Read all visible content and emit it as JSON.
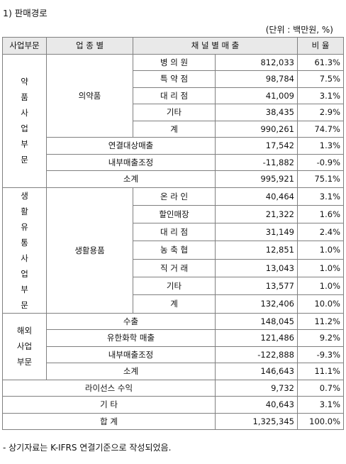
{
  "title": "1) 판매경로",
  "unit_note": "(단위 : 백만원, %)",
  "headers": {
    "segment": "사업부문",
    "type": "업    종    별",
    "channel": "채    널    별    매    출",
    "ratio": "비    율"
  },
  "pharma": {
    "segment_chars": [
      "약",
      "품",
      "사",
      "업",
      "부",
      "문"
    ],
    "product": "의약품",
    "rows": [
      {
        "channel": "병 의 원",
        "amount": "812,033",
        "ratio": "61.3%"
      },
      {
        "channel": "특 약 점",
        "amount": "98,784",
        "ratio": "7.5%"
      },
      {
        "channel": "대 리 점",
        "amount": "41,009",
        "ratio": "3.1%"
      },
      {
        "channel": "기타",
        "amount": "38,435",
        "ratio": "2.9%"
      },
      {
        "channel": "계",
        "amount": "990,261",
        "ratio": "74.7%"
      }
    ],
    "extra": [
      {
        "label": "연결대상매출",
        "amount": "17,542",
        "ratio": "1.3%"
      },
      {
        "label": "내부매출조정",
        "amount": "-11,882",
        "ratio": "-0.9%"
      },
      {
        "label": "소계",
        "amount": "995,921",
        "ratio": "75.1%"
      }
    ]
  },
  "living": {
    "segment_chars": [
      "생",
      "활",
      "유",
      "통",
      "사",
      "업",
      "부",
      "문"
    ],
    "product": "생활용품",
    "rows": [
      {
        "channel": "온 라 인",
        "amount": "40,464",
        "ratio": "3.1%"
      },
      {
        "channel": "할인매장",
        "amount": "21,322",
        "ratio": "1.6%"
      },
      {
        "channel": "대 리 점",
        "amount": "31,149",
        "ratio": "2.4%"
      },
      {
        "channel": "농 축 협",
        "amount": "12,851",
        "ratio": "1.0%"
      },
      {
        "channel": "직 거 래",
        "amount": "13,043",
        "ratio": "1.0%"
      },
      {
        "channel": "기타",
        "amount": "13,577",
        "ratio": "1.0%"
      },
      {
        "channel": "계",
        "amount": "132,406",
        "ratio": "10.0%"
      }
    ]
  },
  "overseas": {
    "segment_chars": [
      "해외",
      "사업",
      "부문"
    ],
    "rows": [
      {
        "label": "수출",
        "amount": "148,045",
        "ratio": "11.2%"
      },
      {
        "label": "유한화학 매출",
        "amount": "121,486",
        "ratio": "9.2%"
      },
      {
        "label": "내부매출조정",
        "amount": "-122,888",
        "ratio": "-9.3%"
      },
      {
        "label": "소계",
        "amount": "146,643",
        "ratio": "11.1%"
      }
    ]
  },
  "license": {
    "label": "라이선스 수익",
    "amount": "9,732",
    "ratio": "0.7%"
  },
  "other": {
    "label": "기    타",
    "amount": "40,643",
    "ratio": "3.1%"
  },
  "total": {
    "label": "합    계",
    "amount": "1,325,345",
    "ratio": "100.0%"
  },
  "footnote": "- 상기자료는 K-IFRS 연결기준으로 작성되었음."
}
